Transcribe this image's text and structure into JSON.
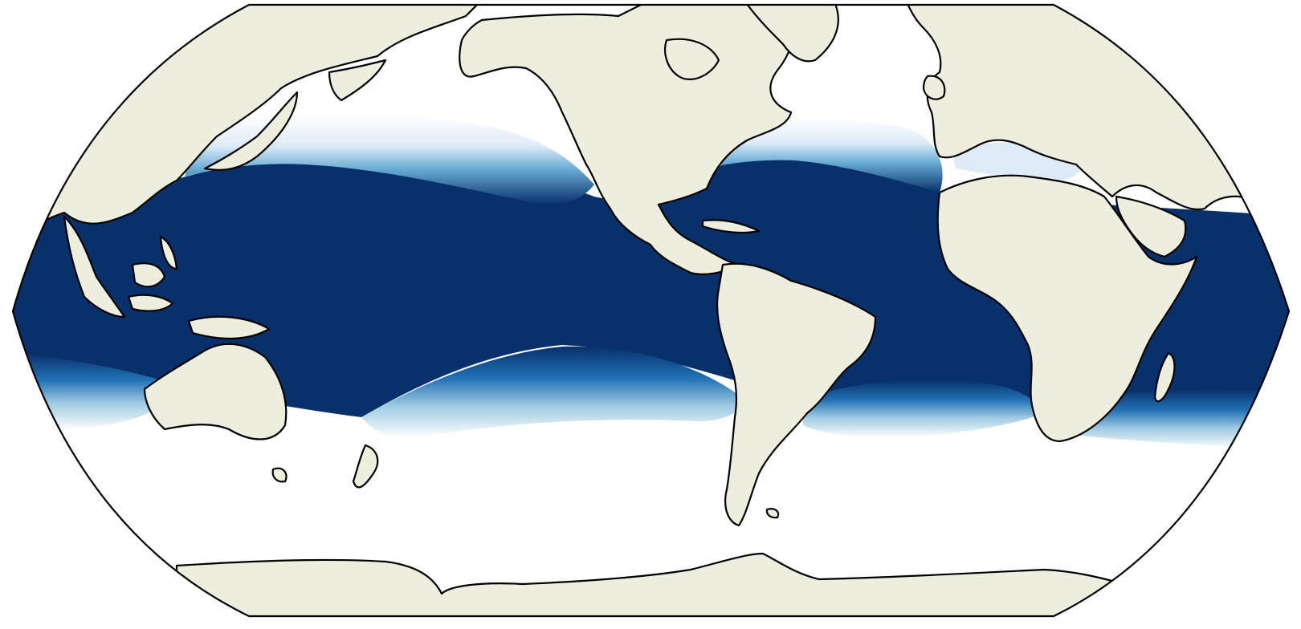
{
  "map": {
    "projection": "robinson",
    "central_longitude": -150,
    "color_ramp": [
      "#ffffff",
      "#deebf7",
      "#9ecae1",
      "#4292c6",
      "#2171b5",
      "#08306b"
    ],
    "land_color": "#eeeedf",
    "coast_color": "#000000",
    "ocean_background": "#ffffff",
    "bands": [
      {
        "name": "north-pacific-gradient",
        "level": 0.55
      },
      {
        "name": "north-atlantic-gradient",
        "level": 0.55
      },
      {
        "name": "south-pacific-gradient",
        "level": 0.45
      },
      {
        "name": "south-atlantic-gradient",
        "level": 0.45
      },
      {
        "name": "indian-ocean-gradient",
        "level": 0.5
      },
      {
        "name": "mediterranean-tint",
        "level": 0.2
      },
      {
        "name": "tropical-core",
        "level": 1.0
      }
    ],
    "landmasses": [
      "eurasia-west",
      "eurasia-east",
      "north-america",
      "greenland",
      "south-america",
      "africa",
      "australia",
      "antarctica",
      "madagascar",
      "japan",
      "new-zealand",
      "indonesia",
      "uk",
      "arabia"
    ]
  }
}
